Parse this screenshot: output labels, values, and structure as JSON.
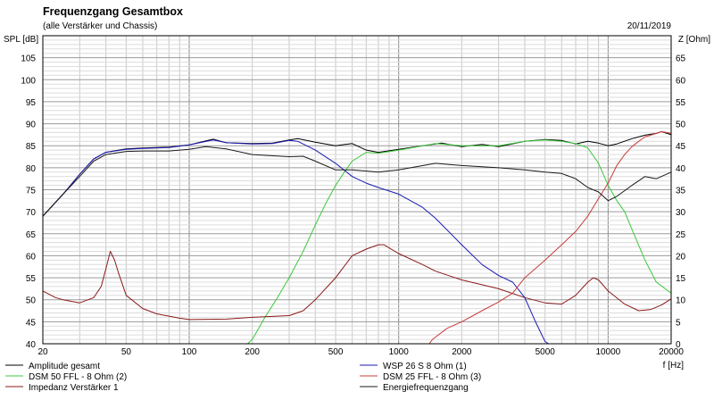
{
  "header": {
    "title": "Frequenzgang Gesamtbox",
    "subtitle": "(alle Verstärker und Chassis)",
    "date": "20/11/2019"
  },
  "chart_data": {
    "type": "line",
    "title": "Frequenzgang Gesamtbox",
    "subtitle": "(alle Verstärker und Chassis)",
    "xlabel": "f [Hz]",
    "ylabel_left": "SPL [dB]",
    "ylabel_right": "Z [Ohm]",
    "x_scale": "log",
    "xlim": [
      20,
      20000
    ],
    "ylim_left": [
      40,
      110
    ],
    "ylim_right": [
      0,
      70
    ],
    "grid": true,
    "x_tick_labels": [
      {
        "x": 20,
        "label": "20"
      },
      {
        "x": 50,
        "label": "50"
      },
      {
        "x": 100,
        "label": "100"
      },
      {
        "x": 200,
        "label": "200"
      },
      {
        "x": 500,
        "label": "500"
      },
      {
        "x": 1000,
        "label": "1000"
      },
      {
        "x": 2000,
        "label": "2000"
      },
      {
        "x": 5000,
        "label": "5000"
      },
      {
        "x": 10000,
        "label": "10000"
      },
      {
        "x": 20000,
        "label": "20000"
      }
    ],
    "y_left_ticks": [
      "40",
      "45",
      "50",
      "55",
      "60",
      "65",
      "70",
      "75",
      "80",
      "85",
      "90",
      "95",
      "100",
      "105"
    ],
    "y_right_ticks": [
      "0",
      "5",
      "10",
      "15",
      "20",
      "25",
      "30",
      "35",
      "40",
      "45",
      "50",
      "55",
      "60",
      "65"
    ],
    "series": [
      {
        "name": "Amplitude gesamt",
        "color": "#000000",
        "axis": "left",
        "points": [
          [
            20,
            69
          ],
          [
            25,
            74
          ],
          [
            30,
            78.5
          ],
          [
            35,
            82
          ],
          [
            40,
            83.5
          ],
          [
            50,
            84.3
          ],
          [
            60,
            84.5
          ],
          [
            80,
            84.7
          ],
          [
            100,
            85.2
          ],
          [
            130,
            86.5
          ],
          [
            150,
            85.7
          ],
          [
            200,
            85.5
          ],
          [
            250,
            85.6
          ],
          [
            300,
            86.3
          ],
          [
            330,
            86.6
          ],
          [
            400,
            85.8
          ],
          [
            500,
            85
          ],
          [
            600,
            85.5
          ],
          [
            700,
            84
          ],
          [
            800,
            83.5
          ],
          [
            1000,
            84.2
          ],
          [
            1300,
            85
          ],
          [
            1600,
            85.6
          ],
          [
            2000,
            84.8
          ],
          [
            2500,
            85.3
          ],
          [
            3000,
            84.8
          ],
          [
            4000,
            86
          ],
          [
            5000,
            86.4
          ],
          [
            6000,
            86.2
          ],
          [
            7000,
            85.4
          ],
          [
            8000,
            86
          ],
          [
            9000,
            85.6
          ],
          [
            10000,
            85
          ],
          [
            11000,
            85.4
          ],
          [
            13000,
            86.6
          ],
          [
            15000,
            87.4
          ],
          [
            17000,
            87.8
          ],
          [
            18000,
            88.2
          ],
          [
            20000,
            87.5
          ]
        ]
      },
      {
        "name": "DSM 50 FFL - 8 Ohm (2)",
        "color": "#3cc83c",
        "axis": "left",
        "points": [
          [
            20,
            40
          ],
          [
            100,
            40
          ],
          [
            190,
            40
          ],
          [
            200,
            41
          ],
          [
            230,
            46
          ],
          [
            260,
            50
          ],
          [
            300,
            55
          ],
          [
            350,
            61
          ],
          [
            400,
            67
          ],
          [
            450,
            72
          ],
          [
            500,
            76
          ],
          [
            550,
            79
          ],
          [
            600,
            81.5
          ],
          [
            700,
            83.5
          ],
          [
            800,
            83.3
          ],
          [
            1000,
            84
          ],
          [
            1500,
            85.5
          ],
          [
            2000,
            85
          ],
          [
            3000,
            85
          ],
          [
            4000,
            86
          ],
          [
            5000,
            86.3
          ],
          [
            6000,
            86
          ],
          [
            7000,
            85.5
          ],
          [
            8000,
            84.5
          ],
          [
            9000,
            81
          ],
          [
            10000,
            76
          ],
          [
            11000,
            72.5
          ],
          [
            12000,
            70
          ],
          [
            13000,
            66
          ],
          [
            15000,
            59
          ],
          [
            17000,
            54
          ],
          [
            20000,
            51.5
          ]
        ]
      },
      {
        "name": "Impedanz Verstärker 1",
        "color": "#8b1a1a",
        "axis": "right",
        "points": [
          [
            20,
            12
          ],
          [
            23,
            10.5
          ],
          [
            25,
            10
          ],
          [
            30,
            9.3
          ],
          [
            35,
            10.5
          ],
          [
            38,
            13
          ],
          [
            40,
            17
          ],
          [
            42,
            21
          ],
          [
            44,
            19
          ],
          [
            46,
            16
          ],
          [
            50,
            11
          ],
          [
            60,
            8
          ],
          [
            70,
            6.8
          ],
          [
            90,
            5.8
          ],
          [
            100,
            5.5
          ],
          [
            150,
            5.6
          ],
          [
            200,
            6
          ],
          [
            300,
            6.4
          ],
          [
            350,
            7.5
          ],
          [
            400,
            10
          ],
          [
            500,
            15
          ],
          [
            600,
            20
          ],
          [
            700,
            21.5
          ],
          [
            800,
            22.5
          ],
          [
            850,
            22.5
          ],
          [
            1000,
            20.5
          ],
          [
            1300,
            18
          ],
          [
            1500,
            16.5
          ],
          [
            2000,
            14.5
          ],
          [
            3000,
            12.5
          ],
          [
            4000,
            10.5
          ],
          [
            5000,
            9.3
          ],
          [
            6000,
            9
          ],
          [
            7000,
            11
          ],
          [
            8000,
            14
          ],
          [
            8500,
            15
          ],
          [
            9000,
            14.5
          ],
          [
            10000,
            12
          ],
          [
            12000,
            9
          ],
          [
            14000,
            7.5
          ],
          [
            16000,
            7.8
          ],
          [
            18000,
            8.8
          ],
          [
            20000,
            10.2
          ]
        ]
      },
      {
        "name": "WSP 26 S 8 Ohm (1)",
        "color": "#1a1ab4",
        "axis": "left",
        "points": [
          [
            20,
            69
          ],
          [
            25,
            74
          ],
          [
            30,
            78.5
          ],
          [
            35,
            82
          ],
          [
            40,
            83.5
          ],
          [
            50,
            84.2
          ],
          [
            60,
            84.4
          ],
          [
            80,
            84.6
          ],
          [
            100,
            85.2
          ],
          [
            130,
            86.3
          ],
          [
            150,
            85.7
          ],
          [
            200,
            85.4
          ],
          [
            250,
            85.5
          ],
          [
            300,
            86.2
          ],
          [
            330,
            86
          ],
          [
            400,
            84
          ],
          [
            500,
            81
          ],
          [
            600,
            78
          ],
          [
            700,
            76.5
          ],
          [
            800,
            75.5
          ],
          [
            1000,
            74
          ],
          [
            1300,
            71
          ],
          [
            1500,
            68.5
          ],
          [
            2000,
            62.5
          ],
          [
            2500,
            58
          ],
          [
            3000,
            55.5
          ],
          [
            3500,
            54
          ],
          [
            4000,
            50.5
          ],
          [
            4500,
            45
          ],
          [
            5000,
            40.5
          ],
          [
            5200,
            40
          ],
          [
            20000,
            40
          ]
        ]
      },
      {
        "name": "DSM 25 FFL - 8 Ohm (3)",
        "color": "#c83c3c",
        "axis": "left",
        "points": [
          [
            20,
            40
          ],
          [
            1400,
            40
          ],
          [
            1450,
            41
          ],
          [
            1700,
            43.5
          ],
          [
            2000,
            45
          ],
          [
            2500,
            47.5
          ],
          [
            3000,
            49.5
          ],
          [
            3500,
            51.5
          ],
          [
            4000,
            55
          ],
          [
            5000,
            59
          ],
          [
            6000,
            62.5
          ],
          [
            7000,
            65.5
          ],
          [
            8000,
            69
          ],
          [
            9000,
            73
          ],
          [
            10000,
            76.5
          ],
          [
            11000,
            80.5
          ],
          [
            12000,
            83
          ],
          [
            13000,
            84.8
          ],
          [
            14000,
            86
          ],
          [
            15000,
            87
          ],
          [
            17000,
            87.8
          ],
          [
            18000,
            88.2
          ],
          [
            20000,
            87.8
          ]
        ]
      },
      {
        "name": "Energiefrequenzgang",
        "color": "#1a1a1a",
        "axis": "left",
        "points": [
          [
            20,
            69
          ],
          [
            25,
            74
          ],
          [
            30,
            78
          ],
          [
            35,
            81.5
          ],
          [
            40,
            83
          ],
          [
            50,
            83.7
          ],
          [
            60,
            83.8
          ],
          [
            80,
            83.8
          ],
          [
            100,
            84.2
          ],
          [
            120,
            84.8
          ],
          [
            150,
            84.3
          ],
          [
            200,
            83
          ],
          [
            300,
            82.5
          ],
          [
            350,
            82.6
          ],
          [
            400,
            81.5
          ],
          [
            500,
            79.5
          ],
          [
            600,
            79.5
          ],
          [
            800,
            79
          ],
          [
            1000,
            79.5
          ],
          [
            1500,
            81
          ],
          [
            2000,
            80.5
          ],
          [
            3000,
            80
          ],
          [
            4000,
            79.5
          ],
          [
            5000,
            79
          ],
          [
            6000,
            78.7
          ],
          [
            7000,
            77.5
          ],
          [
            8000,
            75.5
          ],
          [
            9000,
            74.5
          ],
          [
            10000,
            72.5
          ],
          [
            11000,
            73.5
          ],
          [
            13000,
            76
          ],
          [
            15000,
            78
          ],
          [
            17000,
            77.5
          ],
          [
            20000,
            79
          ]
        ]
      }
    ],
    "legend": {
      "placement": "bottom",
      "left_entries": [
        "Amplitude gesamt",
        "DSM 50 FFL - 8 Ohm (2)",
        "Impedanz Verstärker 1"
      ],
      "right_entries": [
        "WSP 26 S 8 Ohm (1)",
        "DSM 25 FFL - 8 Ohm (3)",
        "Energiefrequenzgang"
      ]
    }
  }
}
